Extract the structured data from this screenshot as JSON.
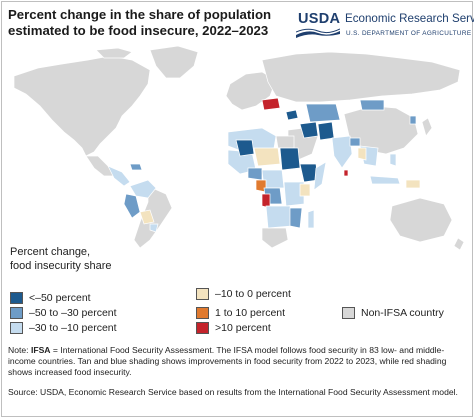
{
  "header": {
    "title_line1": "Percent change in the share of population",
    "title_line2": "estimated to be food insecure, 2022–2023"
  },
  "logo": {
    "agency_short": "USDA",
    "service_name": "Economic Research Service",
    "department": "U.S. DEPARTMENT OF AGRICULTURE"
  },
  "legend": {
    "title_line1": "Percent change,",
    "title_line2": "food insecurity share",
    "items": [
      {
        "label": "<–50 percent",
        "color": "#1d5a8e"
      },
      {
        "label": "–50 to –30 percent",
        "color": "#6e9cc7"
      },
      {
        "label": "–30 to –10 percent",
        "color": "#c5dcef"
      },
      {
        "label": "–10 to 0 percent",
        "color": "#f3e3bf"
      },
      {
        "label": "1 to 10 percent",
        "color": "#e07a2f"
      },
      {
        "label": ">10 percent",
        "color": "#c4232b"
      },
      {
        "label": "Non-IFSA country",
        "color": "#d7d7d7"
      }
    ]
  },
  "note": {
    "label": "Note:",
    "ifsa_abbr": "IFSA",
    "text": " = International Food Security Assessment. The IFSA model follows food security in 83 low- and middle-income countries. Tan and blue shading shows improvements in food security from 2022 to 2023, while red shading shows increased food insecurity."
  },
  "source": {
    "text": "Source: USDA, Economic Research Service based on results from the International Food Security Assessment model."
  },
  "map": {
    "ocean_color": "#ffffff",
    "non_ifsa_color": "#d7d7d7",
    "border_color": "#ffffff"
  }
}
